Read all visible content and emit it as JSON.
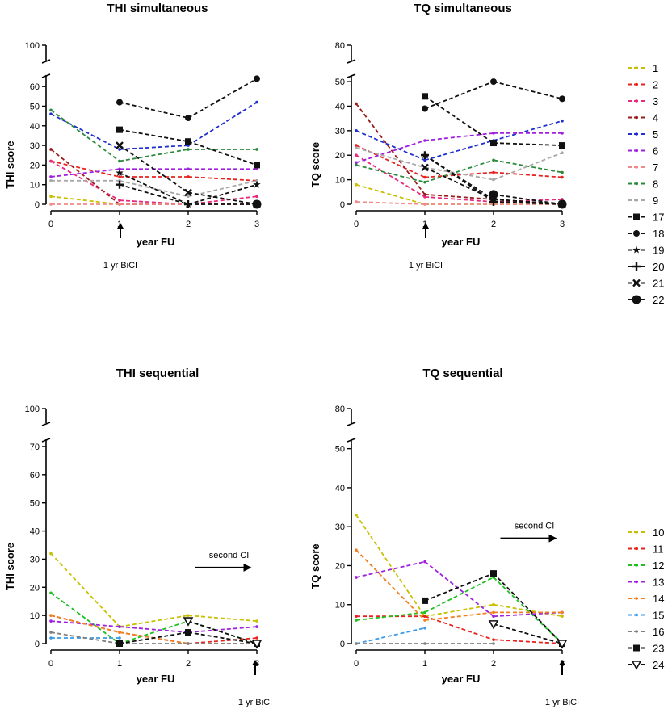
{
  "chart_data": [
    {
      "id": "thi_sim",
      "type": "line",
      "title": "THI simultaneous",
      "xlabel": "year FU",
      "ylabel": "THI score",
      "x": [
        0,
        1,
        2,
        3
      ],
      "xticks": [
        "0",
        "1",
        "2",
        "3"
      ],
      "ylim": [
        0,
        65
      ],
      "yticks": [
        "0",
        "10",
        "20",
        "30",
        "40",
        "50",
        "60"
      ],
      "ybreak_label": "100",
      "annotations": [
        {
          "text": "1 yr BiCI",
          "at_x": 1,
          "kind": "up-arrow"
        }
      ],
      "series": [
        {
          "name": "1",
          "color": "#c8c000",
          "marker": "dot",
          "values": [
            4,
            0,
            0,
            0
          ]
        },
        {
          "name": "2",
          "color": "#e8231f",
          "marker": "dot",
          "values": [
            22,
            14,
            14,
            12
          ]
        },
        {
          "name": "3",
          "color": "#e8287a",
          "marker": "dot",
          "values": [
            22,
            2,
            0,
            4
          ]
        },
        {
          "name": "4",
          "color": "#9c1a1a",
          "marker": "dot",
          "values": [
            28,
            0,
            0,
            0
          ]
        },
        {
          "name": "5",
          "color": "#1f2fd0",
          "marker": "dot",
          "values": [
            46,
            28,
            30,
            52
          ]
        },
        {
          "name": "6",
          "color": "#a020e0",
          "marker": "dot",
          "values": [
            14,
            18,
            18,
            18
          ]
        },
        {
          "name": "7",
          "color": "#f08a8a",
          "marker": "dot",
          "values": [
            0,
            0,
            0,
            0
          ]
        },
        {
          "name": "8",
          "color": "#2a8a3a",
          "marker": "dot",
          "values": [
            48,
            22,
            28,
            28
          ]
        },
        {
          "name": "9",
          "color": "#a8a8a8",
          "marker": "dot",
          "values": [
            12,
            12,
            4,
            12
          ]
        },
        {
          "name": "17",
          "color": "#111111",
          "marker": "square",
          "values": [
            null,
            38,
            32,
            20
          ]
        },
        {
          "name": "18",
          "color": "#111111",
          "marker": "circle",
          "values": [
            null,
            52,
            44,
            64
          ]
        },
        {
          "name": "19",
          "color": "#111111",
          "marker": "star",
          "values": [
            null,
            16,
            0,
            10
          ]
        },
        {
          "name": "20",
          "color": "#111111",
          "marker": "plus",
          "values": [
            null,
            10,
            0,
            0
          ]
        },
        {
          "name": "21",
          "color": "#111111",
          "marker": "x",
          "values": [
            null,
            30,
            6,
            0
          ]
        },
        {
          "name": "22",
          "color": "#111111",
          "marker": "bigcircle",
          "values": [
            null,
            null,
            null,
            0
          ]
        }
      ]
    },
    {
      "id": "tq_sim",
      "type": "line",
      "title": "TQ simultaneous",
      "xlabel": "year FU",
      "ylabel": "TQ score",
      "x": [
        0,
        1,
        2,
        3
      ],
      "xticks": [
        "0",
        "1",
        "2",
        "3"
      ],
      "ylim": [
        0,
        52
      ],
      "yticks": [
        "0",
        "10",
        "20",
        "30",
        "40",
        "50"
      ],
      "ybreak_label": "80",
      "annotations": [
        {
          "text": "1 yr BiCI",
          "at_x": 1,
          "kind": "up-arrow"
        }
      ],
      "series": [
        {
          "name": "1",
          "color": "#c8c000",
          "marker": "dot",
          "values": [
            8,
            0,
            0,
            0
          ]
        },
        {
          "name": "2",
          "color": "#e8231f",
          "marker": "dot",
          "values": [
            24,
            11,
            13,
            11
          ]
        },
        {
          "name": "3",
          "color": "#e8287a",
          "marker": "dot",
          "values": [
            20,
            3,
            1,
            2
          ]
        },
        {
          "name": "4",
          "color": "#9c1a1a",
          "marker": "dot",
          "values": [
            41,
            4,
            2,
            0
          ]
        },
        {
          "name": "5",
          "color": "#1f2fd0",
          "marker": "dot",
          "values": [
            30,
            18,
            26,
            34
          ]
        },
        {
          "name": "6",
          "color": "#a020e0",
          "marker": "dot",
          "values": [
            17,
            26,
            29,
            29
          ]
        },
        {
          "name": "7",
          "color": "#f08a8a",
          "marker": "dot",
          "values": [
            1,
            0,
            0,
            0
          ]
        },
        {
          "name": "8",
          "color": "#2a8a3a",
          "marker": "dot",
          "values": [
            16,
            9,
            18,
            13
          ]
        },
        {
          "name": "9",
          "color": "#a8a8a8",
          "marker": "dot",
          "values": [
            23,
            15,
            10,
            21
          ]
        },
        {
          "name": "17",
          "color": "#111111",
          "marker": "square",
          "values": [
            null,
            44,
            25,
            24
          ]
        },
        {
          "name": "18",
          "color": "#111111",
          "marker": "circle",
          "values": [
            null,
            39,
            50,
            43
          ]
        },
        {
          "name": "19",
          "color": "#111111",
          "marker": "star",
          "values": [
            null,
            20,
            2,
            0
          ]
        },
        {
          "name": "20",
          "color": "#111111",
          "marker": "plus",
          "values": [
            null,
            20,
            1,
            0
          ]
        },
        {
          "name": "21",
          "color": "#111111",
          "marker": "x",
          "values": [
            null,
            15,
            2,
            0
          ]
        },
        {
          "name": "22",
          "color": "#111111",
          "marker": "bigcircle",
          "values": [
            null,
            null,
            4,
            0
          ]
        }
      ]
    },
    {
      "id": "thi_seq",
      "type": "line",
      "title": "THI sequential",
      "xlabel": "year FU",
      "ylabel": "THI score",
      "x": [
        0,
        1,
        2,
        3
      ],
      "xticks": [
        "0",
        "1",
        "2",
        "3"
      ],
      "ylim": [
        0,
        72
      ],
      "yticks": [
        "0",
        "10",
        "20",
        "30",
        "40",
        "50",
        "60",
        "70"
      ],
      "ybreak_label": "100",
      "annotations": [
        {
          "text": "second CI",
          "from_x": 2.1,
          "to_x": 2.9,
          "at_y": 27,
          "kind": "right-arrow"
        },
        {
          "text": "1 yr BiCI",
          "at_x": 3,
          "kind": "up-arrow"
        }
      ],
      "series": [
        {
          "name": "10",
          "color": "#c8c000",
          "marker": "dot",
          "values": [
            32,
            6,
            10,
            8
          ]
        },
        {
          "name": "11",
          "color": "#e8231f",
          "marker": "dot",
          "values": [
            10,
            4,
            0,
            2
          ]
        },
        {
          "name": "12",
          "color": "#1fc01f",
          "marker": "dot",
          "values": [
            18,
            0,
            8,
            0
          ]
        },
        {
          "name": "13",
          "color": "#a020e0",
          "marker": "dot",
          "values": [
            8,
            6,
            4,
            6
          ]
        },
        {
          "name": "14",
          "color": "#f08020",
          "marker": "dot",
          "values": [
            10,
            4,
            0,
            0
          ]
        },
        {
          "name": "15",
          "color": "#3a9ae8",
          "marker": "dot",
          "values": [
            2,
            2,
            null,
            null
          ]
        },
        {
          "name": "16",
          "color": "#808080",
          "marker": "dot",
          "values": [
            4,
            0,
            0,
            0
          ]
        },
        {
          "name": "23",
          "color": "#111111",
          "marker": "square",
          "values": [
            null,
            0,
            4,
            0
          ]
        },
        {
          "name": "24",
          "color": "#111111",
          "marker": "triangle-down",
          "values": [
            null,
            null,
            8,
            0
          ]
        }
      ]
    },
    {
      "id": "tq_seq",
      "type": "line",
      "title": "TQ sequential",
      "xlabel": "year FU",
      "ylabel": "TQ score",
      "x": [
        0,
        1,
        2,
        3
      ],
      "xticks": [
        "0",
        "1",
        "2",
        "3"
      ],
      "ylim": [
        0,
        52
      ],
      "yticks": [
        "0",
        "10",
        "20",
        "30",
        "40",
        "50"
      ],
      "ybreak_label": "80",
      "annotations": [
        {
          "text": "second CI",
          "from_x": 2.1,
          "to_x": 2.9,
          "at_y": 27,
          "kind": "right-arrow"
        },
        {
          "text": "1 yr BiCI",
          "at_x": 3,
          "kind": "up-arrow"
        }
      ],
      "series": [
        {
          "name": "10",
          "color": "#c8c000",
          "marker": "dot",
          "values": [
            33,
            7,
            10,
            7
          ]
        },
        {
          "name": "11",
          "color": "#e8231f",
          "marker": "dot",
          "values": [
            7,
            7,
            1,
            0
          ]
        },
        {
          "name": "12",
          "color": "#1fc01f",
          "marker": "dot",
          "values": [
            6,
            8,
            17,
            0
          ]
        },
        {
          "name": "13",
          "color": "#a020e0",
          "marker": "dot",
          "values": [
            17,
            21,
            7,
            8
          ]
        },
        {
          "name": "14",
          "color": "#f08020",
          "marker": "dot",
          "values": [
            24,
            6,
            8,
            8
          ]
        },
        {
          "name": "15",
          "color": "#3a9ae8",
          "marker": "dot",
          "values": [
            0,
            4,
            null,
            null
          ]
        },
        {
          "name": "16",
          "color": "#808080",
          "marker": "dot",
          "values": [
            0,
            0,
            0,
            null
          ]
        },
        {
          "name": "23",
          "color": "#111111",
          "marker": "square",
          "values": [
            null,
            11,
            18,
            0
          ]
        },
        {
          "name": "24",
          "color": "#111111",
          "marker": "triangle-down",
          "values": [
            null,
            null,
            5,
            0
          ]
        }
      ]
    }
  ],
  "legends": [
    {
      "id": "legend_sim",
      "entries": [
        "1",
        "2",
        "3",
        "4",
        "5",
        "6",
        "7",
        "8",
        "9",
        "17",
        "18",
        "19",
        "20",
        "21",
        "22"
      ]
    },
    {
      "id": "legend_seq",
      "entries": [
        "10",
        "11",
        "12",
        "13",
        "14",
        "15",
        "16",
        "23",
        "24"
      ]
    }
  ]
}
